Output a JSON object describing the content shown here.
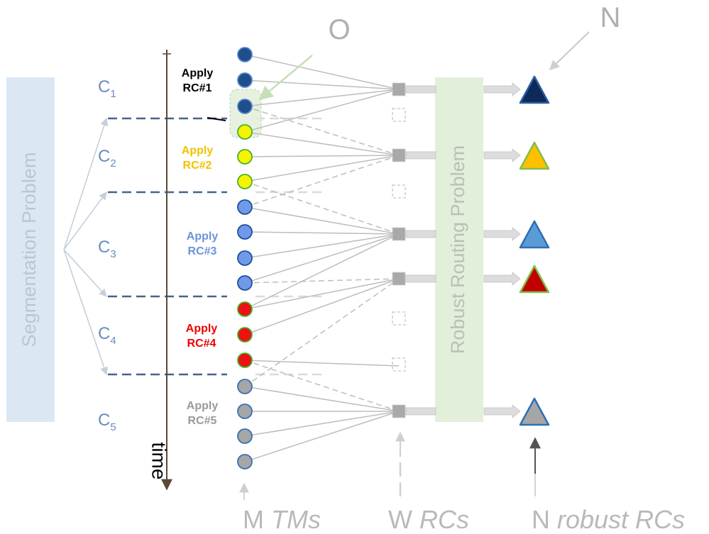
{
  "title": "",
  "segmentation_label": "Segmentation Problem",
  "routing_label": "Robust Routing Problem",
  "time_label": "time",
  "top_label_O": "O",
  "top_label_N": "N",
  "clusters": [
    {
      "letter": "C",
      "sub": "1",
      "apply": "Apply",
      "rc": "RC#1",
      "color": "#000000"
    },
    {
      "letter": "C",
      "sub": "2",
      "apply": "Apply",
      "rc": "RC#2",
      "color": "#f2c200"
    },
    {
      "letter": "C",
      "sub": "3",
      "apply": "Apply",
      "rc": "RC#3",
      "color": "#6b94d8"
    },
    {
      "letter": "C",
      "sub": "4",
      "apply": "Apply",
      "rc": "RC#4",
      "color": "#ee0000"
    },
    {
      "letter": "C",
      "sub": "5",
      "apply": "Apply",
      "rc": "RC#5",
      "color": "#9a9a9a"
    }
  ],
  "bottom_labels": {
    "m": "M",
    "m_italic": "TMs",
    "w": "W",
    "w_italic": "RCs",
    "n": "N",
    "n_italic": "robust RCs"
  },
  "node_colors": {
    "navy": "#1f4e8c",
    "yellow": "#f5f500",
    "blue": "#6f9ae8",
    "red": "#ee1111",
    "grey": "#a6a6a6"
  },
  "triangle_colors": [
    "#0c2a5a",
    "#ffc000",
    "#5b9bd5",
    "#c00000",
    "#a6a6a6"
  ],
  "accent_colors": {
    "cluster_text": "#6a8bbf",
    "faded_text": "#c9c9c9",
    "segmentation_box": "#dbe8f4",
    "routing_box": "#e2efda",
    "divider": "#44648e"
  }
}
